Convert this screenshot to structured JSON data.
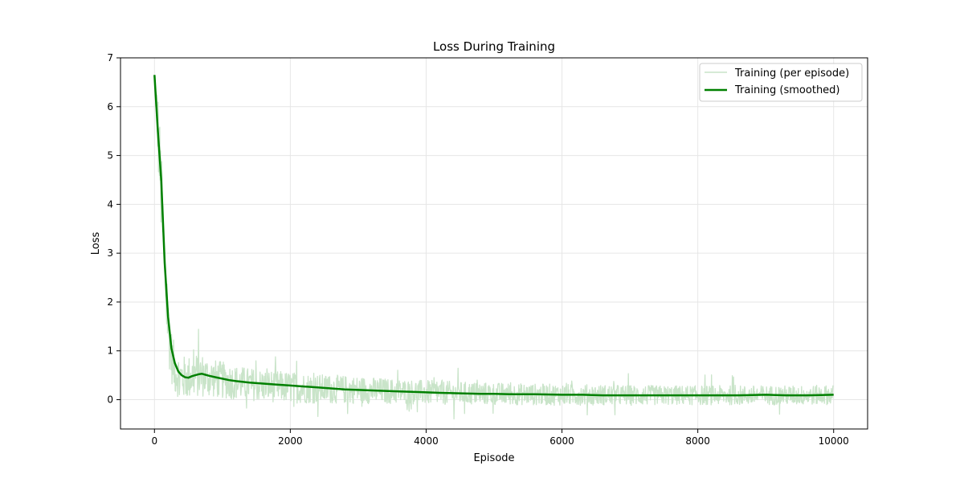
{
  "chart_data": {
    "type": "line",
    "title": "Loss During Training",
    "xlabel": "Episode",
    "ylabel": "Loss",
    "xlim": [
      -500,
      10500
    ],
    "ylim": [
      -0.6,
      7.0
    ],
    "xticks": [
      0,
      2000,
      4000,
      6000,
      8000,
      10000
    ],
    "yticks": [
      0,
      1,
      2,
      3,
      4,
      5,
      6,
      7
    ],
    "grid": true,
    "legend_position": "top-right",
    "series": [
      {
        "name": "Training (per episode)",
        "style": "noisy-band",
        "color": "#c9e4c9",
        "x": [
          0,
          50,
          100,
          150,
          200,
          250,
          300,
          350,
          400,
          500,
          600,
          700,
          800,
          1000,
          1200,
          1500,
          2000,
          2500,
          3000,
          3500,
          4000,
          4500,
          5000,
          5500,
          6000,
          6500,
          7000,
          7500,
          8000,
          8500,
          9000,
          9500,
          10000
        ],
        "center": [
          6.6,
          5.6,
          4.2,
          2.6,
          1.5,
          0.9,
          0.6,
          0.5,
          0.45,
          0.45,
          0.5,
          0.5,
          0.45,
          0.4,
          0.35,
          0.3,
          0.25,
          0.22,
          0.2,
          0.17,
          0.15,
          0.13,
          0.12,
          0.11,
          0.1,
          0.1,
          0.09,
          0.09,
          0.09,
          0.09,
          0.09,
          0.09,
          0.1
        ],
        "spread": [
          0.1,
          0.8,
          1.0,
          0.9,
          0.7,
          0.55,
          0.5,
          0.45,
          0.45,
          0.45,
          0.45,
          0.45,
          0.4,
          0.38,
          0.35,
          0.33,
          0.32,
          0.3,
          0.28,
          0.26,
          0.25,
          0.24,
          0.23,
          0.22,
          0.22,
          0.21,
          0.21,
          0.2,
          0.2,
          0.2,
          0.2,
          0.2,
          0.2
        ]
      },
      {
        "name": "Training (smoothed)",
        "style": "line",
        "color": "#008000",
        "x": [
          0,
          50,
          100,
          150,
          200,
          250,
          300,
          350,
          400,
          450,
          500,
          550,
          600,
          650,
          700,
          750,
          800,
          900,
          1000,
          1100,
          1200,
          1400,
          1600,
          1800,
          2000,
          2200,
          2400,
          2600,
          2800,
          3000,
          3200,
          3400,
          3600,
          3800,
          4000,
          4200,
          4500,
          4800,
          5000,
          5300,
          5600,
          6000,
          6300,
          6600,
          7000,
          7300,
          7600,
          8000,
          8300,
          8600,
          9000,
          9300,
          9600,
          10000
        ],
        "y": [
          6.65,
          5.5,
          4.5,
          2.8,
          1.7,
          1.05,
          0.75,
          0.58,
          0.5,
          0.46,
          0.45,
          0.48,
          0.5,
          0.52,
          0.53,
          0.51,
          0.49,
          0.46,
          0.43,
          0.4,
          0.38,
          0.35,
          0.33,
          0.31,
          0.29,
          0.27,
          0.25,
          0.23,
          0.21,
          0.2,
          0.19,
          0.18,
          0.17,
          0.16,
          0.15,
          0.14,
          0.13,
          0.12,
          0.12,
          0.11,
          0.11,
          0.1,
          0.1,
          0.09,
          0.09,
          0.09,
          0.09,
          0.09,
          0.09,
          0.09,
          0.1,
          0.09,
          0.09,
          0.1
        ]
      }
    ]
  }
}
